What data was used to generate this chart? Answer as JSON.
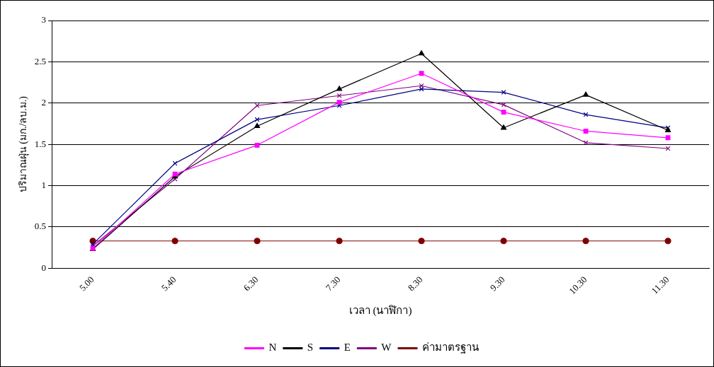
{
  "chart_data": {
    "type": "line",
    "xlabel": "เวลา (นาฬิกา)",
    "ylabel": "ปริมาณฝุ่น (มก./ลบ.ม.)",
    "categories": [
      "5.00",
      "5.40",
      "6.30",
      "7.30",
      "8.30",
      "9.30",
      "10.30",
      "11.30"
    ],
    "ylim": [
      0,
      3
    ],
    "yticks": [
      0,
      0.5,
      1,
      1.5,
      2,
      2.5,
      3
    ],
    "grid": "y",
    "legend": "bottom",
    "line_style": "solid",
    "series": [
      {
        "name": "N",
        "color": "#ff00ff",
        "marker": "square",
        "values": [
          0.24,
          1.14,
          1.49,
          2.01,
          2.36,
          1.89,
          1.66,
          1.58
        ]
      },
      {
        "name": "S",
        "color": "#000000",
        "marker": "triangle",
        "values": [
          0.23,
          1.11,
          1.72,
          2.17,
          2.6,
          1.7,
          2.1,
          1.67
        ]
      },
      {
        "name": "E",
        "color": "#000080",
        "marker": "cross",
        "values": [
          0.29,
          1.27,
          1.8,
          1.97,
          2.17,
          2.13,
          1.86,
          1.7
        ]
      },
      {
        "name": "W",
        "color": "#800080",
        "marker": "cross",
        "values": [
          0.27,
          1.08,
          1.97,
          2.09,
          2.21,
          1.98,
          1.52,
          1.45
        ]
      },
      {
        "name": "ค่ามาตรฐาน",
        "color": "#800000",
        "marker": "circle",
        "values": [
          0.33,
          0.33,
          0.33,
          0.33,
          0.33,
          0.33,
          0.33,
          0.33
        ]
      }
    ]
  }
}
